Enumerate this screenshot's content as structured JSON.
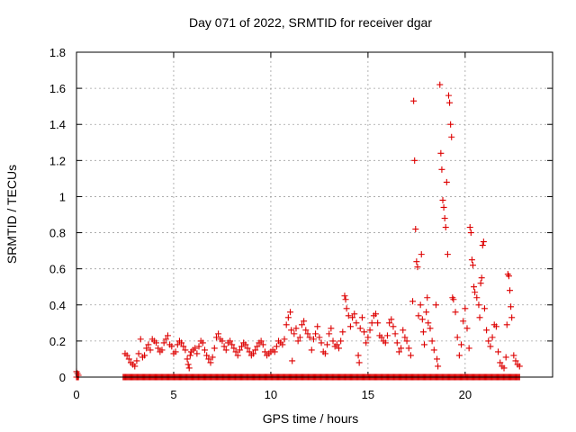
{
  "chart_data": {
    "type": "scatter",
    "title": "Day 071 of 2022, SRMTID for receiver dgar",
    "xlabel": "GPS time / hours",
    "ylabel": "SRMTID / TECUs",
    "xlim": [
      0,
      24.5
    ],
    "ylim": [
      0,
      1.8
    ],
    "grid": true,
    "marker": "+",
    "colors": {
      "series": "#dd0000"
    },
    "x_ticks": [
      0,
      5,
      10,
      15,
      20
    ],
    "x_tick_labels": [
      "0",
      "5",
      "10",
      "15",
      "20"
    ],
    "y_ticks": [
      0,
      0.2,
      0.4,
      0.6,
      0.8,
      1.0,
      1.2,
      1.4,
      1.6,
      1.8
    ],
    "y_tick_labels": [
      "0",
      "0.2",
      "0.4",
      "0.6",
      "0.8",
      "1",
      "1.2",
      "1.4",
      "1.6",
      "1.8"
    ],
    "series": [
      {
        "name": "SRMTID",
        "points": [
          [
            0.0,
            0.03
          ],
          [
            0.05,
            0.02
          ],
          [
            0.1,
            0.01
          ],
          [
            0.08,
            0.0
          ],
          [
            2.5,
            0.13
          ],
          [
            2.6,
            0.12
          ],
          [
            2.7,
            0.1
          ],
          [
            2.8,
            0.08
          ],
          [
            2.9,
            0.07
          ],
          [
            3.0,
            0.06
          ],
          [
            3.1,
            0.09
          ],
          [
            3.2,
            0.13
          ],
          [
            3.3,
            0.21
          ],
          [
            3.4,
            0.11
          ],
          [
            3.5,
            0.12
          ],
          [
            3.6,
            0.16
          ],
          [
            3.7,
            0.18
          ],
          [
            3.8,
            0.15
          ],
          [
            3.9,
            0.21
          ],
          [
            4.0,
            0.2
          ],
          [
            4.1,
            0.19
          ],
          [
            4.2,
            0.16
          ],
          [
            4.3,
            0.14
          ],
          [
            4.4,
            0.15
          ],
          [
            4.5,
            0.19
          ],
          [
            4.6,
            0.21
          ],
          [
            4.7,
            0.23
          ],
          [
            4.8,
            0.18
          ],
          [
            4.9,
            0.17
          ],
          [
            5.0,
            0.13
          ],
          [
            5.1,
            0.14
          ],
          [
            5.2,
            0.18
          ],
          [
            5.3,
            0.2
          ],
          [
            5.4,
            0.19
          ],
          [
            5.5,
            0.17
          ],
          [
            5.6,
            0.15
          ],
          [
            5.7,
            0.1
          ],
          [
            5.75,
            0.07
          ],
          [
            5.8,
            0.05
          ],
          [
            5.85,
            0.12
          ],
          [
            5.9,
            0.14
          ],
          [
            6.0,
            0.15
          ],
          [
            6.1,
            0.16
          ],
          [
            6.2,
            0.13
          ],
          [
            6.3,
            0.17
          ],
          [
            6.4,
            0.2
          ],
          [
            6.5,
            0.19
          ],
          [
            6.6,
            0.15
          ],
          [
            6.7,
            0.12
          ],
          [
            6.8,
            0.1
          ],
          [
            6.9,
            0.08
          ],
          [
            7.0,
            0.11
          ],
          [
            7.1,
            0.16
          ],
          [
            7.2,
            0.22
          ],
          [
            7.3,
            0.24
          ],
          [
            7.4,
            0.21
          ],
          [
            7.5,
            0.2
          ],
          [
            7.6,
            0.17
          ],
          [
            7.7,
            0.15
          ],
          [
            7.8,
            0.19
          ],
          [
            7.9,
            0.2
          ],
          [
            8.0,
            0.18
          ],
          [
            8.1,
            0.16
          ],
          [
            8.2,
            0.14
          ],
          [
            8.3,
            0.12
          ],
          [
            8.4,
            0.15
          ],
          [
            8.5,
            0.17
          ],
          [
            8.6,
            0.19
          ],
          [
            8.7,
            0.18
          ],
          [
            8.8,
            0.16
          ],
          [
            8.9,
            0.14
          ],
          [
            9.0,
            0.12
          ],
          [
            9.1,
            0.13
          ],
          [
            9.2,
            0.15
          ],
          [
            9.3,
            0.17
          ],
          [
            9.4,
            0.19
          ],
          [
            9.5,
            0.2
          ],
          [
            9.6,
            0.18
          ],
          [
            9.7,
            0.14
          ],
          [
            9.8,
            0.12
          ],
          [
            9.9,
            0.13
          ],
          [
            10.0,
            0.14
          ],
          [
            10.1,
            0.15
          ],
          [
            10.2,
            0.14
          ],
          [
            10.3,
            0.17
          ],
          [
            10.4,
            0.2
          ],
          [
            10.5,
            0.19
          ],
          [
            10.6,
            0.18
          ],
          [
            10.7,
            0.21
          ],
          [
            10.8,
            0.29
          ],
          [
            10.9,
            0.33
          ],
          [
            11.0,
            0.36
          ],
          [
            11.05,
            0.26
          ],
          [
            11.1,
            0.09
          ],
          [
            11.2,
            0.24
          ],
          [
            11.3,
            0.27
          ],
          [
            11.4,
            0.2
          ],
          [
            11.5,
            0.22
          ],
          [
            11.6,
            0.29
          ],
          [
            11.7,
            0.31
          ],
          [
            11.8,
            0.26
          ],
          [
            11.9,
            0.24
          ],
          [
            12.0,
            0.22
          ],
          [
            12.1,
            0.15
          ],
          [
            12.2,
            0.21
          ],
          [
            12.3,
            0.24
          ],
          [
            12.4,
            0.28
          ],
          [
            12.5,
            0.22
          ],
          [
            12.6,
            0.19
          ],
          [
            12.7,
            0.14
          ],
          [
            12.8,
            0.13
          ],
          [
            12.9,
            0.18
          ],
          [
            13.0,
            0.24
          ],
          [
            13.1,
            0.27
          ],
          [
            13.2,
            0.2
          ],
          [
            13.3,
            0.17
          ],
          [
            13.4,
            0.18
          ],
          [
            13.5,
            0.16
          ],
          [
            13.6,
            0.2
          ],
          [
            13.7,
            0.25
          ],
          [
            13.8,
            0.45
          ],
          [
            13.85,
            0.43
          ],
          [
            13.9,
            0.38
          ],
          [
            14.0,
            0.34
          ],
          [
            14.1,
            0.28
          ],
          [
            14.2,
            0.33
          ],
          [
            14.3,
            0.35
          ],
          [
            14.4,
            0.3
          ],
          [
            14.5,
            0.12
          ],
          [
            14.55,
            0.08
          ],
          [
            14.6,
            0.27
          ],
          [
            14.7,
            0.33
          ],
          [
            14.8,
            0.25
          ],
          [
            14.9,
            0.19
          ],
          [
            15.0,
            0.22
          ],
          [
            15.1,
            0.26
          ],
          [
            15.2,
            0.3
          ],
          [
            15.3,
            0.34
          ],
          [
            15.4,
            0.35
          ],
          [
            15.5,
            0.3
          ],
          [
            15.6,
            0.23
          ],
          [
            15.7,
            0.22
          ],
          [
            15.8,
            0.2
          ],
          [
            15.9,
            0.19
          ],
          [
            16.0,
            0.23
          ],
          [
            16.1,
            0.3
          ],
          [
            16.2,
            0.32
          ],
          [
            16.3,
            0.28
          ],
          [
            16.4,
            0.24
          ],
          [
            16.5,
            0.19
          ],
          [
            16.6,
            0.14
          ],
          [
            16.7,
            0.16
          ],
          [
            16.8,
            0.26
          ],
          [
            16.9,
            0.22
          ],
          [
            17.0,
            0.2
          ],
          [
            17.1,
            0.16
          ],
          [
            17.2,
            0.12
          ],
          [
            17.3,
            0.42
          ],
          [
            17.35,
            1.53
          ],
          [
            17.4,
            1.2
          ],
          [
            17.45,
            0.82
          ],
          [
            17.5,
            0.64
          ],
          [
            17.55,
            0.61
          ],
          [
            17.6,
            0.34
          ],
          [
            17.7,
            0.4
          ],
          [
            17.75,
            0.68
          ],
          [
            17.8,
            0.32
          ],
          [
            17.85,
            0.25
          ],
          [
            17.9,
            0.18
          ],
          [
            18.0,
            0.36
          ],
          [
            18.05,
            0.44
          ],
          [
            18.1,
            0.3
          ],
          [
            18.2,
            0.27
          ],
          [
            18.3,
            0.2
          ],
          [
            18.4,
            0.15
          ],
          [
            18.5,
            0.4
          ],
          [
            18.55,
            0.1
          ],
          [
            18.6,
            0.06
          ],
          [
            18.7,
            1.62
          ],
          [
            18.75,
            1.24
          ],
          [
            18.8,
            1.15
          ],
          [
            18.85,
            0.98
          ],
          [
            18.9,
            0.94
          ],
          [
            18.95,
            0.88
          ],
          [
            19.0,
            0.83
          ],
          [
            19.05,
            1.08
          ],
          [
            19.1,
            0.68
          ],
          [
            19.15,
            1.56
          ],
          [
            19.2,
            1.52
          ],
          [
            19.25,
            1.4
          ],
          [
            19.3,
            1.33
          ],
          [
            19.35,
            0.44
          ],
          [
            19.4,
            0.43
          ],
          [
            19.5,
            0.36
          ],
          [
            19.6,
            0.22
          ],
          [
            19.7,
            0.12
          ],
          [
            19.8,
            0.18
          ],
          [
            19.9,
            0.31
          ],
          [
            20.0,
            0.38
          ],
          [
            20.1,
            0.27
          ],
          [
            20.2,
            0.16
          ],
          [
            20.25,
            0.83
          ],
          [
            20.3,
            0.8
          ],
          [
            20.35,
            0.65
          ],
          [
            20.4,
            0.62
          ],
          [
            20.45,
            0.5
          ],
          [
            20.5,
            0.47
          ],
          [
            20.6,
            0.44
          ],
          [
            20.7,
            0.4
          ],
          [
            20.75,
            0.33
          ],
          [
            20.8,
            0.52
          ],
          [
            20.85,
            0.55
          ],
          [
            20.9,
            0.73
          ],
          [
            20.95,
            0.75
          ],
          [
            21.0,
            0.38
          ],
          [
            21.1,
            0.26
          ],
          [
            21.2,
            0.2
          ],
          [
            21.3,
            0.17
          ],
          [
            21.4,
            0.22
          ],
          [
            21.5,
            0.29
          ],
          [
            21.6,
            0.28
          ],
          [
            21.7,
            0.14
          ],
          [
            21.8,
            0.08
          ],
          [
            21.9,
            0.06
          ],
          [
            22.0,
            0.05
          ],
          [
            22.1,
            0.11
          ],
          [
            22.15,
            0.29
          ],
          [
            22.2,
            0.57
          ],
          [
            22.25,
            0.56
          ],
          [
            22.3,
            0.48
          ],
          [
            22.35,
            0.39
          ],
          [
            22.4,
            0.33
          ],
          [
            22.5,
            0.12
          ],
          [
            22.6,
            0.09
          ],
          [
            22.7,
            0.07
          ],
          [
            22.8,
            0.06
          ]
        ]
      }
    ],
    "zero_bands": [
      [
        0.0,
        0.12
      ],
      [
        2.4,
        22.8
      ]
    ]
  }
}
